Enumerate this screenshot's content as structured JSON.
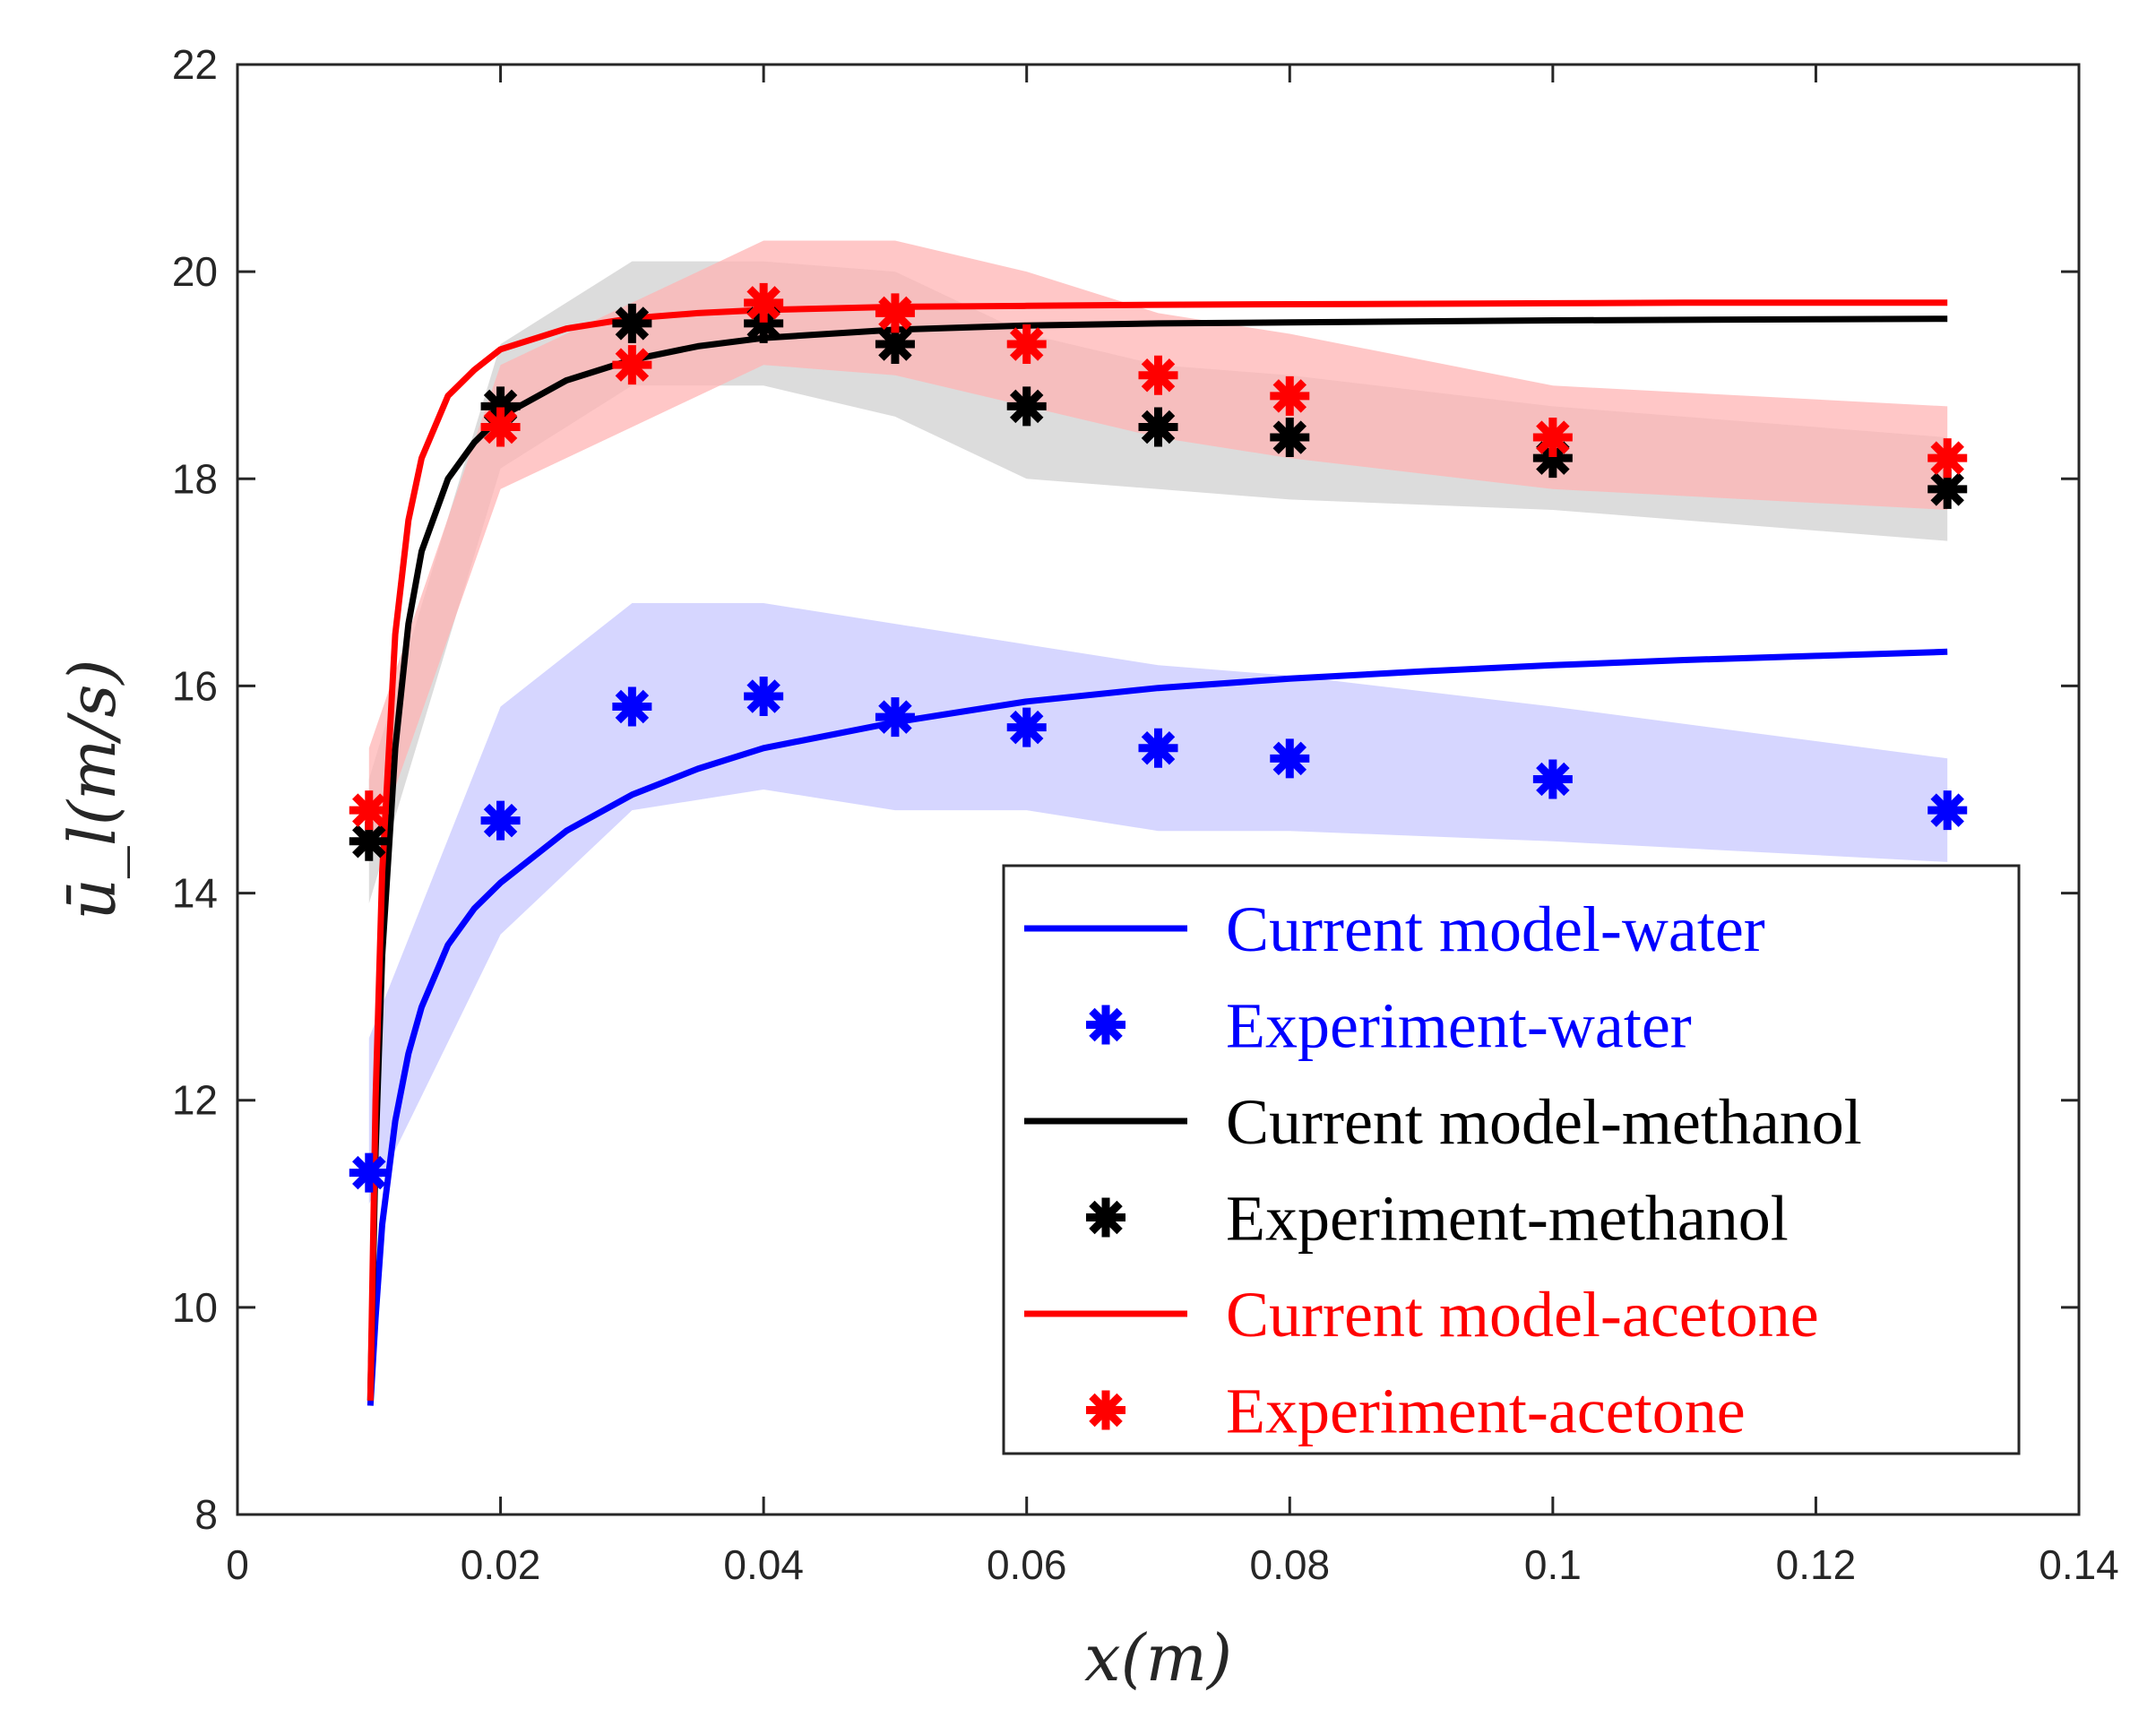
{
  "chart_data": {
    "type": "line",
    "title": "",
    "xlabel": "x(m)",
    "ylabel": "ū_l(m/s)",
    "xlim": [
      0,
      0.14
    ],
    "ylim": [
      8,
      22
    ],
    "xticks": [
      "0",
      "0.02",
      "0.04",
      "0.06",
      "0.08",
      "0.1",
      "0.12",
      "0.14"
    ],
    "yticks": [
      "8",
      "10",
      "12",
      "14",
      "16",
      "18",
      "20",
      "22"
    ],
    "grid": false,
    "legend_position": "bottom-right",
    "x_points": [
      0.01,
      0.02,
      0.03,
      0.04,
      0.05,
      0.06,
      0.07,
      0.08,
      0.1,
      0.13
    ],
    "series": [
      {
        "name": "Current model-water",
        "kind": "line",
        "color": "#0000ff",
        "x": [
          0.0101,
          0.0105,
          0.011,
          0.012,
          0.013,
          0.014,
          0.016,
          0.018,
          0.02,
          0.025,
          0.03,
          0.035,
          0.04,
          0.05,
          0.06,
          0.07,
          0.08,
          0.09,
          0.1,
          0.11,
          0.12,
          0.13
        ],
        "y": [
          9.05,
          9.9,
          10.8,
          11.8,
          12.45,
          12.9,
          13.5,
          13.85,
          14.1,
          14.6,
          14.95,
          15.2,
          15.4,
          15.65,
          15.85,
          15.98,
          16.07,
          16.14,
          16.2,
          16.25,
          16.29,
          16.33
        ]
      },
      {
        "name": "Experiment-water",
        "kind": "marker",
        "color": "#0000ff",
        "y": [
          11.3,
          14.7,
          15.8,
          15.9,
          15.7,
          15.6,
          15.4,
          15.3,
          15.1,
          14.8
        ],
        "band_low": [
          11.0,
          13.6,
          14.8,
          15.0,
          14.8,
          14.8,
          14.6,
          14.6,
          14.5,
          14.3
        ],
        "band_high": [
          12.6,
          15.8,
          16.8,
          16.8,
          16.6,
          16.4,
          16.2,
          16.1,
          15.8,
          15.3
        ]
      },
      {
        "name": "Current model-methanol",
        "kind": "line",
        "color": "#000000",
        "x": [
          0.0101,
          0.0105,
          0.011,
          0.012,
          0.013,
          0.014,
          0.016,
          0.018,
          0.02,
          0.025,
          0.03,
          0.035,
          0.04,
          0.05,
          0.06,
          0.07,
          0.08,
          0.09,
          0.1,
          0.11,
          0.12,
          0.13
        ],
        "y": [
          9.1,
          11.5,
          13.4,
          15.4,
          16.6,
          17.3,
          18.0,
          18.35,
          18.6,
          18.95,
          19.15,
          19.28,
          19.36,
          19.44,
          19.48,
          19.5,
          19.51,
          19.52,
          19.53,
          19.535,
          19.54,
          19.545
        ]
      },
      {
        "name": "Experiment-methanol",
        "kind": "marker",
        "color": "#000000",
        "y": [
          14.5,
          18.7,
          19.5,
          19.5,
          19.3,
          18.7,
          18.5,
          18.4,
          18.2,
          17.9
        ],
        "band_low": [
          13.9,
          18.1,
          18.9,
          18.9,
          18.6,
          18.0,
          17.9,
          17.8,
          17.7,
          17.4
        ],
        "band_high": [
          15.1,
          19.3,
          20.1,
          20.1,
          20.0,
          19.4,
          19.1,
          19.0,
          18.7,
          18.4
        ]
      },
      {
        "name": "Current model-acetone",
        "kind": "line",
        "color": "#ff0000",
        "x": [
          0.0101,
          0.0105,
          0.011,
          0.012,
          0.013,
          0.014,
          0.016,
          0.018,
          0.02,
          0.025,
          0.03,
          0.035,
          0.04,
          0.05,
          0.06,
          0.07,
          0.08,
          0.09,
          0.1,
          0.11,
          0.12,
          0.13
        ],
        "y": [
          9.1,
          12.0,
          14.2,
          16.5,
          17.6,
          18.2,
          18.8,
          19.05,
          19.25,
          19.45,
          19.55,
          19.6,
          19.63,
          19.66,
          19.67,
          19.68,
          19.685,
          19.69,
          19.695,
          19.7,
          19.7,
          19.7
        ]
      },
      {
        "name": "Experiment-acetone",
        "kind": "marker",
        "color": "#ff0000",
        "y": [
          14.8,
          18.5,
          19.1,
          19.7,
          19.6,
          19.3,
          19.0,
          18.8,
          18.4,
          18.2
        ],
        "band_low": [
          14.3,
          17.9,
          18.5,
          19.1,
          19.0,
          18.7,
          18.4,
          18.2,
          17.9,
          17.7
        ],
        "band_high": [
          15.4,
          19.1,
          19.7,
          20.3,
          20.3,
          20.0,
          19.6,
          19.4,
          18.9,
          18.7
        ]
      }
    ],
    "band_colors": {
      "water": "#c8c8ff",
      "methanol": "#d0d0d0",
      "acetone": "#ffb4b4"
    }
  }
}
